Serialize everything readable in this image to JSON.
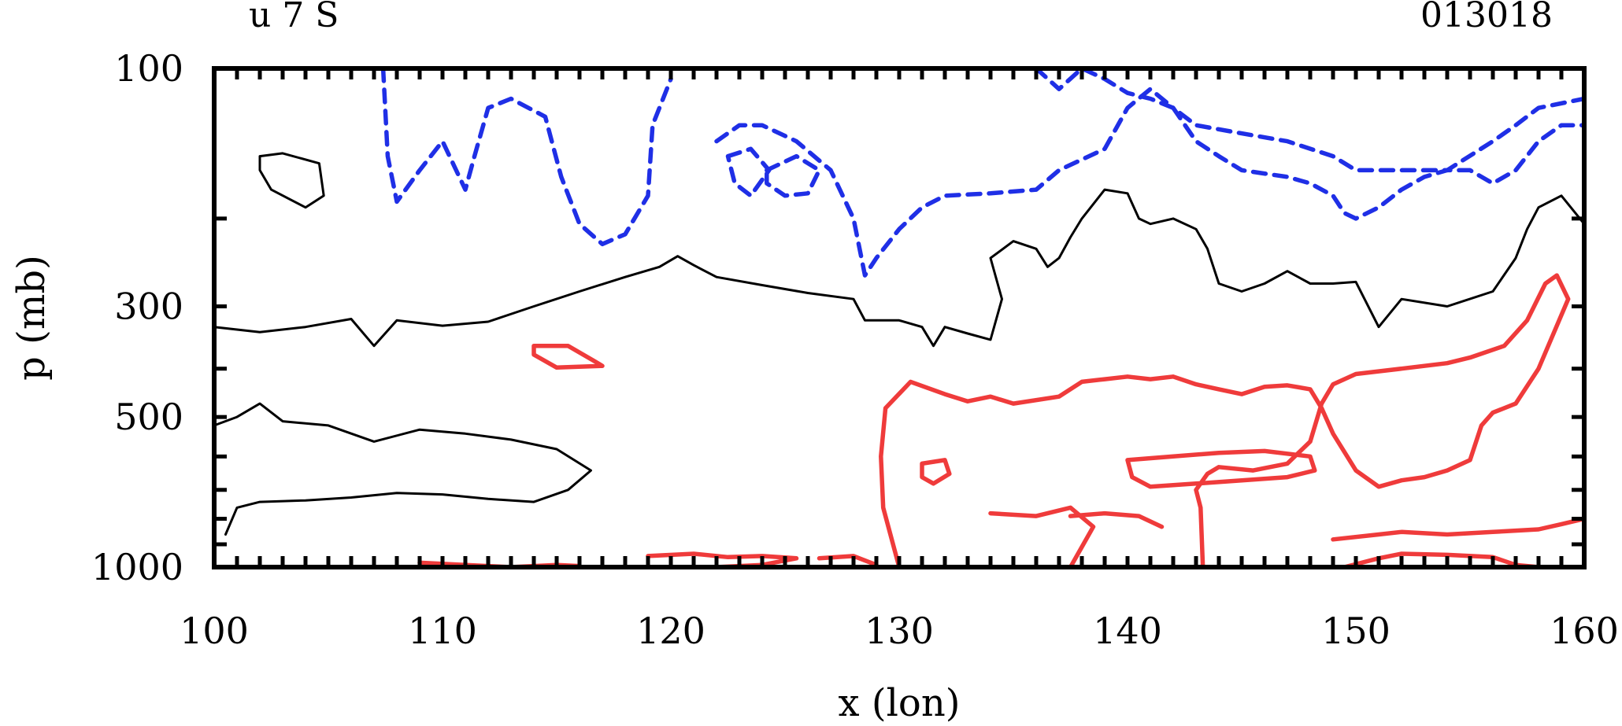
{
  "chart_data": {
    "type": "contour",
    "title_left": "u 7 S",
    "title_right": "013018",
    "xlabel": "x (lon)",
    "ylabel": "p (mb)",
    "x_ticks": [
      "100",
      "110",
      "120",
      "130",
      "140",
      "150",
      "160"
    ],
    "x_tick_values": [
      100,
      110,
      120,
      130,
      140,
      150,
      160
    ],
    "y_ticks": [
      "100",
      "300",
      "500",
      "1000"
    ],
    "y_tick_values": [
      100,
      300,
      500,
      1000
    ],
    "xlim": [
      100,
      160
    ],
    "ylim": [
      1000,
      100
    ],
    "y_scale": "log",
    "colors": {
      "negative": "#1f2fe6",
      "zero": "#000000",
      "positive": "#ef3b3b"
    },
    "contours": [
      {
        "sign": "zero",
        "points": [
          [
            100,
            330
          ],
          [
            102,
            338
          ],
          [
            104,
            330
          ],
          [
            106,
            318
          ],
          [
            107,
            360
          ],
          [
            108,
            320
          ],
          [
            110,
            328
          ],
          [
            112,
            322
          ],
          [
            114,
            300
          ],
          [
            116,
            280
          ],
          [
            118,
            262
          ],
          [
            119.5,
            250
          ],
          [
            120.3,
            238
          ],
          [
            121,
            248
          ],
          [
            122,
            262
          ],
          [
            124,
            272
          ],
          [
            126,
            282
          ],
          [
            128,
            290
          ],
          [
            128.5,
            320
          ],
          [
            130,
            320
          ],
          [
            131,
            330
          ],
          [
            131.5,
            360
          ],
          [
            132,
            330
          ],
          [
            133,
            340
          ],
          [
            134,
            350
          ],
          [
            134.5,
            290
          ],
          [
            134,
            240
          ],
          [
            135,
            222
          ],
          [
            136,
            230
          ],
          [
            136.5,
            250
          ],
          [
            137,
            240
          ],
          [
            137.5,
            218
          ],
          [
            138,
            200
          ],
          [
            139,
            175
          ],
          [
            140,
            178
          ],
          [
            140.5,
            200
          ],
          [
            141,
            205
          ],
          [
            142,
            200
          ],
          [
            143,
            210
          ],
          [
            143.5,
            230
          ],
          [
            144,
            270
          ],
          [
            145,
            280
          ],
          [
            146,
            270
          ],
          [
            147,
            255
          ],
          [
            148,
            270
          ],
          [
            149,
            270
          ],
          [
            150,
            268
          ],
          [
            151,
            330
          ],
          [
            152,
            290
          ],
          [
            154,
            300
          ],
          [
            156,
            280
          ],
          [
            157,
            240
          ],
          [
            157.5,
            210
          ],
          [
            158,
            190
          ],
          [
            159,
            180
          ],
          [
            160,
            205
          ]
        ]
      },
      {
        "sign": "zero",
        "points": [
          [
            102,
            150
          ],
          [
            103,
            148
          ],
          [
            104.6,
            155
          ],
          [
            104.8,
            180
          ],
          [
            104,
            190
          ],
          [
            102.5,
            175
          ],
          [
            102,
            160
          ],
          [
            102,
            150
          ]
        ]
      },
      {
        "sign": "zero",
        "points": [
          [
            100,
            520
          ],
          [
            101,
            500
          ],
          [
            102,
            470
          ],
          [
            103,
            510
          ],
          [
            105,
            520
          ],
          [
            107,
            560
          ],
          [
            109,
            530
          ],
          [
            111,
            540
          ],
          [
            113,
            555
          ],
          [
            115,
            580
          ],
          [
            116.5,
            640
          ],
          [
            115.5,
            700
          ],
          [
            114,
            740
          ],
          [
            112,
            730
          ],
          [
            110,
            715
          ],
          [
            108,
            710
          ],
          [
            106,
            725
          ],
          [
            104,
            735
          ],
          [
            102,
            740
          ],
          [
            101,
            760
          ],
          [
            100.5,
            860
          ]
        ]
      },
      {
        "sign": "negative",
        "points": [
          [
            107.4,
            100
          ],
          [
            107.6,
            150
          ],
          [
            108,
            185
          ],
          [
            109,
            160
          ],
          [
            110,
            140
          ],
          [
            111,
            175
          ],
          [
            111.4,
            150
          ],
          [
            112,
            120
          ],
          [
            113,
            115
          ],
          [
            114.5,
            125
          ],
          [
            115.2,
            165
          ],
          [
            116,
            205
          ],
          [
            117,
            225
          ],
          [
            118,
            215
          ],
          [
            119,
            180
          ],
          [
            119.2,
            130
          ],
          [
            120,
            105
          ]
        ]
      },
      {
        "sign": "negative",
        "points": [
          [
            122,
            140
          ],
          [
            123,
            130
          ],
          [
            124,
            130
          ],
          [
            125.5,
            140
          ],
          [
            127,
            160
          ],
          [
            128,
            200
          ],
          [
            128.5,
            260
          ],
          [
            129,
            240
          ],
          [
            130,
            210
          ],
          [
            131,
            190
          ],
          [
            132,
            180
          ],
          [
            134,
            178
          ],
          [
            136,
            175
          ],
          [
            137,
            160
          ],
          [
            139,
            145
          ],
          [
            140,
            120
          ],
          [
            141,
            110
          ],
          [
            142,
            120
          ],
          [
            143,
            140
          ],
          [
            144,
            150
          ],
          [
            145,
            160
          ],
          [
            147,
            165
          ],
          [
            148,
            170
          ],
          [
            149,
            180
          ],
          [
            149.5,
            195
          ],
          [
            150,
            200
          ],
          [
            151,
            190
          ],
          [
            152,
            175
          ],
          [
            153,
            165
          ],
          [
            154,
            160
          ],
          [
            155,
            160
          ],
          [
            156,
            170
          ],
          [
            157,
            160
          ],
          [
            158,
            140
          ],
          [
            159,
            130
          ],
          [
            160,
            130
          ]
        ]
      },
      {
        "sign": "negative",
        "points": [
          [
            122.5,
            150
          ],
          [
            123.5,
            145
          ],
          [
            124.3,
            160
          ],
          [
            123.5,
            180
          ],
          [
            122.8,
            170
          ],
          [
            122.5,
            150
          ]
        ]
      },
      {
        "sign": "negative",
        "points": [
          [
            124.2,
            160
          ],
          [
            125.5,
            150
          ],
          [
            126.5,
            160
          ],
          [
            126,
            178
          ],
          [
            125,
            180
          ],
          [
            124.2,
            170
          ],
          [
            124.2,
            160
          ]
        ]
      },
      {
        "sign": "negative",
        "points": [
          [
            136,
            100
          ],
          [
            137,
            110
          ],
          [
            138,
            100
          ],
          [
            139,
            105
          ],
          [
            140,
            112
          ],
          [
            141,
            115
          ],
          [
            142,
            120
          ],
          [
            143,
            130
          ],
          [
            145,
            135
          ],
          [
            147,
            140
          ],
          [
            149,
            150
          ],
          [
            150,
            160
          ],
          [
            152,
            160
          ],
          [
            154,
            160
          ],
          [
            156,
            140
          ],
          [
            157,
            130
          ],
          [
            158,
            120
          ],
          [
            160,
            115
          ]
        ]
      },
      {
        "sign": "positive",
        "points": [
          [
            114,
            360
          ],
          [
            115.5,
            360
          ],
          [
            116.6,
            385
          ],
          [
            117,
            395
          ],
          [
            115,
            398
          ],
          [
            114,
            375
          ],
          [
            114,
            360
          ]
        ]
      },
      {
        "sign": "positive",
        "points": [
          [
            130,
            1000
          ],
          [
            129.3,
            760
          ],
          [
            129.2,
            600
          ],
          [
            129.4,
            480
          ],
          [
            130.5,
            425
          ],
          [
            132,
            450
          ],
          [
            133,
            465
          ],
          [
            134,
            455
          ],
          [
            135,
            470
          ],
          [
            137,
            455
          ],
          [
            138,
            425
          ],
          [
            139,
            420
          ],
          [
            140,
            415
          ],
          [
            141,
            420
          ],
          [
            142,
            415
          ],
          [
            143,
            430
          ],
          [
            144,
            440
          ],
          [
            145,
            450
          ],
          [
            146,
            435
          ],
          [
            147,
            432
          ],
          [
            148,
            440
          ],
          [
            148.5,
            480
          ],
          [
            149,
            540
          ],
          [
            150,
            640
          ],
          [
            151,
            690
          ],
          [
            152,
            670
          ],
          [
            153,
            660
          ],
          [
            154,
            640
          ],
          [
            155,
            610
          ],
          [
            155.5,
            520
          ],
          [
            156,
            490
          ],
          [
            157,
            470
          ],
          [
            158,
            400
          ],
          [
            159.3,
            290
          ],
          [
            158.8,
            260
          ],
          [
            158.3,
            270
          ],
          [
            157.5,
            320
          ],
          [
            156.5,
            360
          ],
          [
            155,
            380
          ],
          [
            154,
            390
          ],
          [
            152,
            400
          ],
          [
            150,
            410
          ],
          [
            149,
            430
          ],
          [
            148.5,
            470
          ],
          [
            148,
            560
          ],
          [
            147,
            620
          ],
          [
            145.5,
            640
          ],
          [
            144,
            630
          ],
          [
            143.5,
            650
          ],
          [
            143,
            700
          ],
          [
            143.2,
            760
          ],
          [
            143.3,
            1000
          ]
        ]
      },
      {
        "sign": "positive",
        "points": [
          [
            109,
            980
          ],
          [
            111,
            990
          ],
          [
            113,
            1000
          ],
          [
            115,
            990
          ],
          [
            116,
            995
          ]
        ]
      },
      {
        "sign": "positive",
        "points": [
          [
            119,
            950
          ],
          [
            121,
            940
          ],
          [
            122.5,
            955
          ],
          [
            124,
            950
          ],
          [
            125.5,
            960
          ],
          [
            124,
            990
          ],
          [
            122,
            1000
          ]
        ]
      },
      {
        "sign": "positive",
        "points": [
          [
            126.5,
            960
          ],
          [
            128,
            950
          ],
          [
            129,
            990
          ]
        ]
      },
      {
        "sign": "positive",
        "points": [
          [
            131,
            620
          ],
          [
            132,
            610
          ],
          [
            132.2,
            650
          ],
          [
            131.5,
            680
          ],
          [
            131,
            660
          ],
          [
            131,
            620
          ]
        ]
      },
      {
        "sign": "positive",
        "points": [
          [
            134,
            780
          ],
          [
            136,
            790
          ],
          [
            137.5,
            760
          ],
          [
            138.5,
            830
          ],
          [
            137.5,
            1000
          ]
        ]
      },
      {
        "sign": "positive",
        "points": [
          [
            137.5,
            790
          ],
          [
            139,
            780
          ],
          [
            140.5,
            790
          ],
          [
            141.5,
            830
          ]
        ]
      },
      {
        "sign": "positive",
        "points": [
          [
            140,
            610
          ],
          [
            142,
            600
          ],
          [
            144,
            590
          ],
          [
            146,
            585
          ],
          [
            148,
            600
          ],
          [
            148.2,
            640
          ],
          [
            147,
            660
          ],
          [
            145,
            670
          ],
          [
            143,
            680
          ],
          [
            141,
            690
          ],
          [
            140.2,
            660
          ],
          [
            140,
            610
          ]
        ]
      },
      {
        "sign": "positive",
        "points": [
          [
            149,
            880
          ],
          [
            151,
            860
          ],
          [
            152,
            850
          ],
          [
            154,
            860
          ],
          [
            156,
            850
          ],
          [
            158,
            840
          ],
          [
            159,
            820
          ],
          [
            160,
            800
          ]
        ]
      },
      {
        "sign": "positive",
        "points": [
          [
            149.5,
            1000
          ],
          [
            151,
            960
          ],
          [
            152,
            940
          ],
          [
            154,
            945
          ],
          [
            156,
            955
          ],
          [
            157,
            990
          ],
          [
            158,
            1000
          ]
        ]
      }
    ]
  }
}
